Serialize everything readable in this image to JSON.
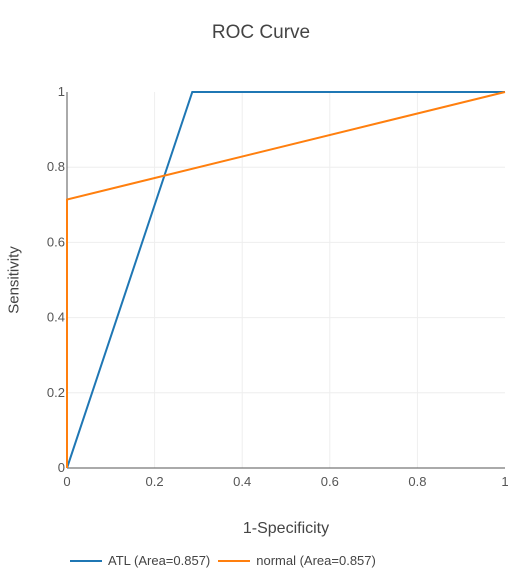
{
  "chart_data": {
    "type": "line",
    "title": "ROC Curve",
    "xlabel": "1-Specificity",
    "ylabel": "Sensitivity",
    "xlim": [
      0,
      1
    ],
    "ylim": [
      0,
      1
    ],
    "x_ticks": [
      "0",
      "0.2",
      "0.4",
      "0.6",
      "0.8",
      "1"
    ],
    "y_ticks": [
      "0",
      "0.2",
      "0.4",
      "0.6",
      "0.8",
      "1"
    ],
    "grid": true,
    "legend_position": "bottom",
    "series": [
      {
        "name": "ATL (Area=0.857)",
        "color": "#1f77b4",
        "x": [
          0,
          0.286,
          1
        ],
        "y": [
          0,
          1,
          1
        ]
      },
      {
        "name": "normal (Area=0.857)",
        "color": "#ff7f0e",
        "x": [
          0,
          0,
          1
        ],
        "y": [
          0,
          0.714,
          1
        ]
      }
    ]
  }
}
